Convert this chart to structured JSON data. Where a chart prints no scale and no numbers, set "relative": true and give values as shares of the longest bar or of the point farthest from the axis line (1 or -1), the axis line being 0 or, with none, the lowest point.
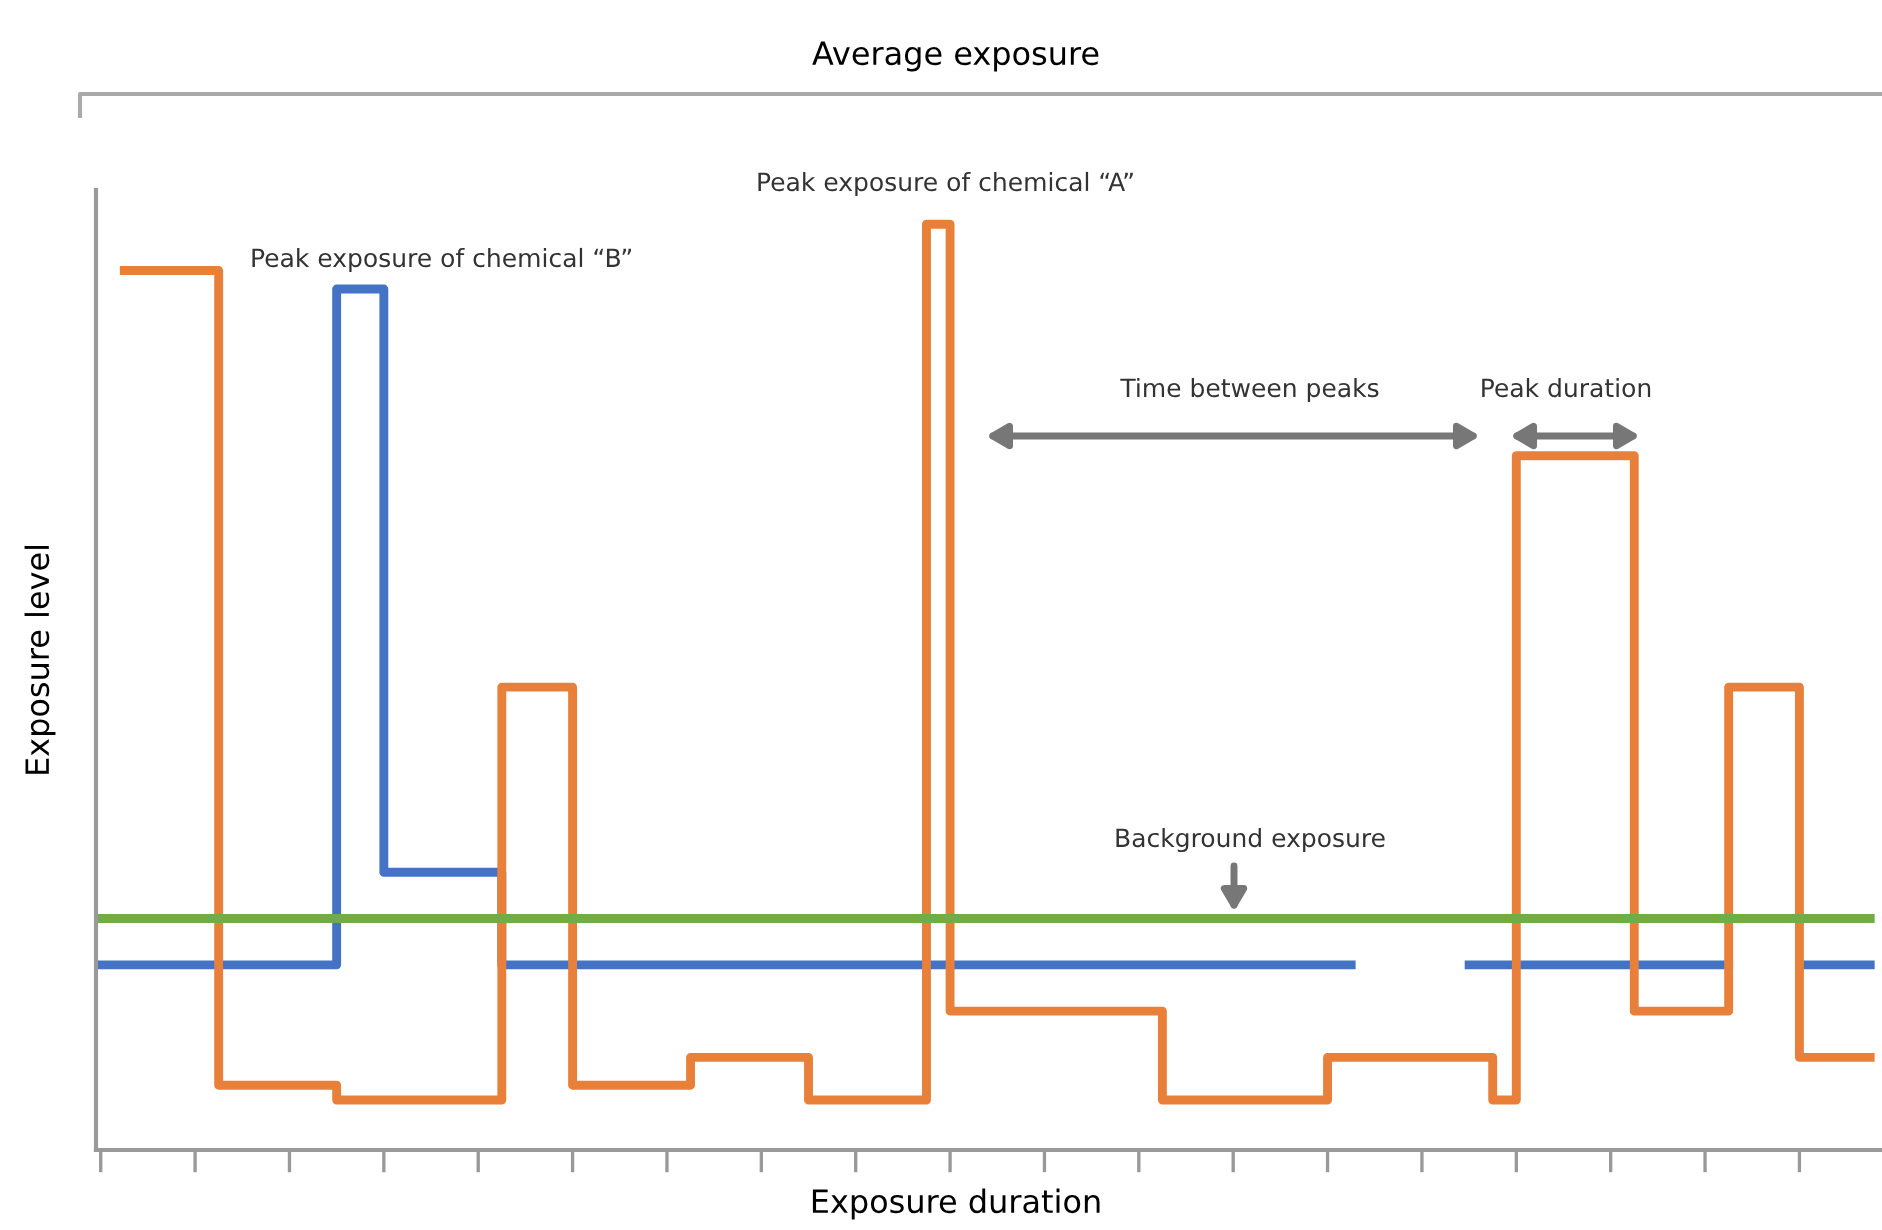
{
  "chart_data": {
    "type": "step",
    "title": "Average exposure",
    "xlabel": "Exposure duration",
    "ylabel": "Exposure level",
    "relative": true,
    "annotations": [
      "Peak exposure of chemical “B”",
      "Peak exposure of chemical “A”",
      "Time between peaks",
      "Peak duration",
      "Background exposure"
    ],
    "categories": [
      null,
      null,
      null,
      null,
      null,
      null,
      null,
      null,
      null,
      null,
      null,
      null,
      null,
      null,
      null,
      null,
      null,
      null,
      null,
      null,
      null,
      null,
      null,
      null,
      null,
      null,
      null,
      null,
      null,
      null,
      null,
      null,
      null,
      null,
      null,
      null,
      null,
      null,
      null,
      null,
      null,
      null,
      null,
      null,
      null,
      null,
      null,
      null,
      null,
      null,
      null,
      null,
      null,
      null,
      null,
      null,
      null,
      null,
      null,
      null,
      null,
      null,
      null,
      null,
      null,
      null,
      null,
      null,
      null,
      null,
      null,
      null,
      null,
      null,
      null,
      null
    ],
    "series": [
      {
        "color": "#70ad47",
        "values": [
          0.25,
          0.25,
          0.25,
          0.25,
          0.25,
          0.25,
          0.25,
          0.25,
          0.25,
          0.25,
          0.25,
          0.25,
          0.25,
          0.25,
          0.25,
          0.25,
          0.25,
          0.25,
          0.25,
          0.25,
          0.25,
          0.25,
          0.25,
          0.25,
          0.25,
          0.25,
          0.25,
          0.25,
          0.25,
          0.25,
          0.25,
          0.25,
          0.25,
          0.25,
          0.25,
          0.25,
          0.25,
          0.25,
          0.25,
          0.25,
          0.25,
          0.25,
          0.25,
          0.25,
          0.25,
          0.25,
          0.25,
          0.25,
          0.25,
          0.25,
          0.25,
          0.25,
          0.25,
          0.25,
          0.25,
          0.25,
          0.25,
          0.25,
          0.25,
          0.25,
          0.25,
          0.25,
          0.25,
          0.25,
          0.25,
          0.25,
          0.25,
          0.25,
          0.25,
          0.25,
          0.25,
          0.25,
          0.25,
          0.25,
          0.25,
          0.25
        ]
      },
      {
        "color": "#4472c4",
        "values": [
          0.2,
          0.2,
          0.2,
          0.2,
          0.2,
          0.2,
          0.2,
          0.2,
          0.2,
          0.2,
          0.93,
          0.93,
          0.3,
          0.3,
          0.3,
          0.3,
          0.3,
          0.2,
          0.2,
          0.2,
          0.2,
          0.2,
          0.2,
          0.2,
          0.2,
          0.2,
          0.2,
          0.2,
          0.2,
          0.2,
          0.2,
          0.2,
          0.2,
          0.2,
          0.2,
          0.2,
          0.2,
          0.2,
          0.2,
          0.2,
          0.2,
          0.2,
          0.2,
          0.2,
          0.2,
          0.2,
          0.2,
          0.2,
          0.2,
          0.2,
          0.2,
          0.2,
          0.2,
          null,
          null,
          null,
          null,
          null,
          0.2,
          0.2,
          0.2,
          0.2,
          0.2,
          0.2,
          0.2,
          0.2,
          0.2,
          0.2,
          0.2,
          null,
          null,
          null,
          0.2,
          0.2,
          0.2,
          0.2
        ]
      },
      {
        "color": "#e8803a",
        "values": [
          null,
          0.95,
          0.95,
          0.95,
          0.95,
          0.07,
          0.07,
          0.07,
          0.07,
          0.07,
          0.054,
          0.054,
          0.054,
          0.054,
          0.054,
          0.054,
          0.054,
          0.5,
          0.5,
          0.5,
          0.07,
          0.07,
          0.07,
          0.07,
          0.07,
          0.1,
          0.1,
          0.1,
          0.1,
          0.1,
          0.054,
          0.054,
          0.054,
          0.054,
          0.054,
          1.0,
          0.15,
          0.15,
          0.15,
          0.15,
          0.15,
          0.15,
          0.15,
          0.15,
          0.15,
          0.054,
          0.054,
          0.054,
          0.054,
          0.054,
          0.054,
          0.054,
          0.1,
          0.1,
          0.1,
          0.1,
          0.1,
          0.1,
          0.1,
          0.054,
          0.75,
          0.75,
          0.75,
          0.75,
          0.75,
          0.15,
          0.15,
          0.15,
          0.15,
          0.5,
          0.5,
          0.5,
          0.1,
          0.1,
          0.1,
          0.1
        ]
      }
    ]
  }
}
